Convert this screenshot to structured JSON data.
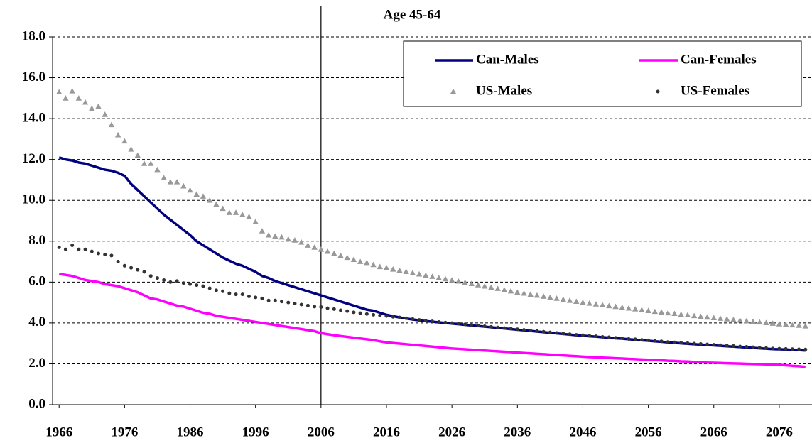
{
  "chart_data": {
    "type": "line",
    "title": "Age 45-64",
    "x": [
      1966,
      1967,
      1968,
      1969,
      1970,
      1971,
      1972,
      1973,
      1974,
      1975,
      1976,
      1977,
      1978,
      1979,
      1980,
      1981,
      1982,
      1983,
      1984,
      1985,
      1986,
      1987,
      1988,
      1989,
      1990,
      1991,
      1992,
      1993,
      1994,
      1995,
      1996,
      1997,
      1998,
      1999,
      2000,
      2001,
      2002,
      2003,
      2004,
      2005,
      2006,
      2007,
      2008,
      2009,
      2010,
      2011,
      2012,
      2013,
      2014,
      2015,
      2016,
      2017,
      2018,
      2019,
      2020,
      2021,
      2022,
      2023,
      2024,
      2025,
      2026,
      2027,
      2028,
      2029,
      2030,
      2031,
      2032,
      2033,
      2034,
      2035,
      2036,
      2037,
      2038,
      2039,
      2040,
      2041,
      2042,
      2043,
      2044,
      2045,
      2046,
      2047,
      2048,
      2049,
      2050,
      2051,
      2052,
      2053,
      2054,
      2055,
      2056,
      2057,
      2058,
      2059,
      2060,
      2061,
      2062,
      2063,
      2064,
      2065,
      2066,
      2067,
      2068,
      2069,
      2070,
      2071,
      2072,
      2073,
      2074,
      2075,
      2076,
      2077,
      2078,
      2079,
      2080
    ],
    "series": [
      {
        "name": "Can-Males",
        "color": "#000080",
        "style": "line",
        "values": [
          12.1,
          12.0,
          11.95,
          11.85,
          11.8,
          11.7,
          11.6,
          11.5,
          11.45,
          11.35,
          11.2,
          10.8,
          10.5,
          10.2,
          9.9,
          9.6,
          9.3,
          9.05,
          8.8,
          8.55,
          8.3,
          8.0,
          7.8,
          7.6,
          7.4,
          7.2,
          7.05,
          6.9,
          6.8,
          6.65,
          6.5,
          6.3,
          6.2,
          6.05,
          5.95,
          5.85,
          5.75,
          5.65,
          5.55,
          5.45,
          5.35,
          5.25,
          5.15,
          5.05,
          4.95,
          4.85,
          4.75,
          4.65,
          4.6,
          4.5,
          4.4,
          4.33,
          4.27,
          4.22,
          4.17,
          4.13,
          4.09,
          4.06,
          4.03,
          4.0,
          3.97,
          3.94,
          3.91,
          3.88,
          3.85,
          3.82,
          3.79,
          3.76,
          3.73,
          3.7,
          3.67,
          3.64,
          3.61,
          3.58,
          3.55,
          3.52,
          3.49,
          3.46,
          3.43,
          3.4,
          3.38,
          3.35,
          3.33,
          3.3,
          3.28,
          3.25,
          3.23,
          3.2,
          3.18,
          3.15,
          3.13,
          3.1,
          3.08,
          3.05,
          3.03,
          3.0,
          2.98,
          2.96,
          2.94,
          2.92,
          2.9,
          2.88,
          2.86,
          2.84,
          2.82,
          2.8,
          2.78,
          2.76,
          2.74,
          2.72,
          2.71,
          2.7,
          2.68,
          2.67,
          2.65
        ]
      },
      {
        "name": "Can-Females",
        "color": "#ff00ff",
        "style": "line",
        "values": [
          6.4,
          6.35,
          6.3,
          6.2,
          6.1,
          6.05,
          6.0,
          5.9,
          5.85,
          5.8,
          5.7,
          5.6,
          5.5,
          5.35,
          5.2,
          5.15,
          5.05,
          4.95,
          4.85,
          4.8,
          4.7,
          4.6,
          4.5,
          4.45,
          4.35,
          4.3,
          4.25,
          4.2,
          4.15,
          4.1,
          4.05,
          4.0,
          3.95,
          3.9,
          3.85,
          3.8,
          3.75,
          3.7,
          3.65,
          3.6,
          3.5,
          3.45,
          3.4,
          3.36,
          3.32,
          3.28,
          3.24,
          3.2,
          3.16,
          3.1,
          3.05,
          3.02,
          2.99,
          2.96,
          2.93,
          2.9,
          2.87,
          2.84,
          2.81,
          2.78,
          2.75,
          2.73,
          2.71,
          2.69,
          2.67,
          2.65,
          2.63,
          2.61,
          2.59,
          2.57,
          2.55,
          2.53,
          2.51,
          2.49,
          2.47,
          2.45,
          2.43,
          2.41,
          2.39,
          2.37,
          2.35,
          2.33,
          2.32,
          2.3,
          2.29,
          2.27,
          2.26,
          2.24,
          2.23,
          2.21,
          2.2,
          2.18,
          2.17,
          2.15,
          2.14,
          2.12,
          2.11,
          2.09,
          2.08,
          2.06,
          2.05,
          2.04,
          2.03,
          2.02,
          2.01,
          2.0,
          1.99,
          1.98,
          1.97,
          1.96,
          1.95,
          1.93,
          1.9,
          1.88,
          1.85
        ]
      },
      {
        "name": "US-Males",
        "color": "#999999",
        "style": "triangle",
        "values": [
          15.3,
          15.0,
          15.35,
          15.0,
          14.8,
          14.5,
          14.6,
          14.2,
          13.7,
          13.2,
          12.9,
          12.5,
          12.2,
          11.8,
          11.8,
          11.5,
          11.1,
          10.9,
          10.9,
          10.7,
          10.5,
          10.3,
          10.2,
          10.0,
          9.8,
          9.6,
          9.4,
          9.4,
          9.3,
          9.2,
          8.95,
          8.5,
          8.3,
          8.25,
          8.2,
          8.1,
          8.05,
          7.95,
          7.8,
          7.7,
          7.6,
          7.5,
          7.4,
          7.3,
          7.2,
          7.1,
          7.0,
          6.95,
          6.85,
          6.75,
          6.7,
          6.63,
          6.57,
          6.51,
          6.45,
          6.39,
          6.33,
          6.27,
          6.21,
          6.16,
          6.1,
          6.04,
          5.98,
          5.92,
          5.86,
          5.8,
          5.74,
          5.68,
          5.62,
          5.56,
          5.5,
          5.45,
          5.4,
          5.35,
          5.3,
          5.25,
          5.2,
          5.15,
          5.1,
          5.05,
          5.0,
          4.96,
          4.92,
          4.88,
          4.84,
          4.8,
          4.76,
          4.72,
          4.68,
          4.64,
          4.6,
          4.56,
          4.53,
          4.49,
          4.46,
          4.42,
          4.39,
          4.35,
          4.32,
          4.28,
          4.25,
          4.22,
          4.19,
          4.16,
          4.13,
          4.1,
          4.07,
          4.04,
          4.01,
          3.98,
          3.95,
          3.93,
          3.9,
          3.88,
          3.85
        ]
      },
      {
        "name": "US-Females",
        "color": "#333333",
        "style": "dot",
        "values": [
          7.7,
          7.6,
          7.8,
          7.6,
          7.6,
          7.5,
          7.4,
          7.35,
          7.3,
          7.0,
          6.8,
          6.7,
          6.6,
          6.5,
          6.3,
          6.2,
          6.1,
          6.0,
          6.05,
          5.95,
          5.9,
          5.85,
          5.8,
          5.7,
          5.6,
          5.55,
          5.45,
          5.4,
          5.4,
          5.3,
          5.25,
          5.2,
          5.1,
          5.1,
          5.05,
          5.0,
          4.95,
          4.9,
          4.85,
          4.8,
          4.78,
          4.72,
          4.68,
          4.62,
          4.58,
          4.52,
          4.48,
          4.44,
          4.4,
          4.37,
          4.34,
          4.3,
          4.27,
          4.23,
          4.19,
          4.15,
          4.11,
          4.08,
          4.05,
          4.02,
          3.99,
          3.96,
          3.93,
          3.9,
          3.87,
          3.84,
          3.81,
          3.78,
          3.75,
          3.72,
          3.69,
          3.66,
          3.63,
          3.6,
          3.57,
          3.54,
          3.51,
          3.48,
          3.45,
          3.42,
          3.4,
          3.37,
          3.35,
          3.32,
          3.3,
          3.27,
          3.25,
          3.22,
          3.2,
          3.17,
          3.15,
          3.12,
          3.1,
          3.07,
          3.05,
          3.03,
          3.01,
          2.99,
          2.97,
          2.95,
          2.93,
          2.91,
          2.89,
          2.87,
          2.85,
          2.83,
          2.81,
          2.79,
          2.77,
          2.75,
          2.74,
          2.73,
          2.72,
          2.71,
          2.7
        ]
      }
    ],
    "xlim": [
      1965,
      2081
    ],
    "xticks": [
      1966,
      1976,
      1986,
      1996,
      2006,
      2016,
      2026,
      2036,
      2046,
      2056,
      2066,
      2076
    ],
    "ylim": [
      0,
      18
    ],
    "yticks": [
      {
        "value": 0,
        "label": "0.0"
      },
      {
        "value": 2,
        "label": "2.0"
      },
      {
        "value": 4,
        "label": "4.0"
      },
      {
        "value": 6,
        "label": "6.0"
      },
      {
        "value": 8,
        "label": "8.0"
      },
      {
        "value": 10,
        "label": "10.0"
      },
      {
        "value": 12,
        "label": "12.0"
      },
      {
        "value": 14,
        "label": "14.0"
      },
      {
        "value": 16,
        "label": "16.0"
      },
      {
        "value": 18,
        "label": "18.0"
      }
    ],
    "grid": true,
    "reference_line_x": 2006,
    "legend": "top-right"
  }
}
